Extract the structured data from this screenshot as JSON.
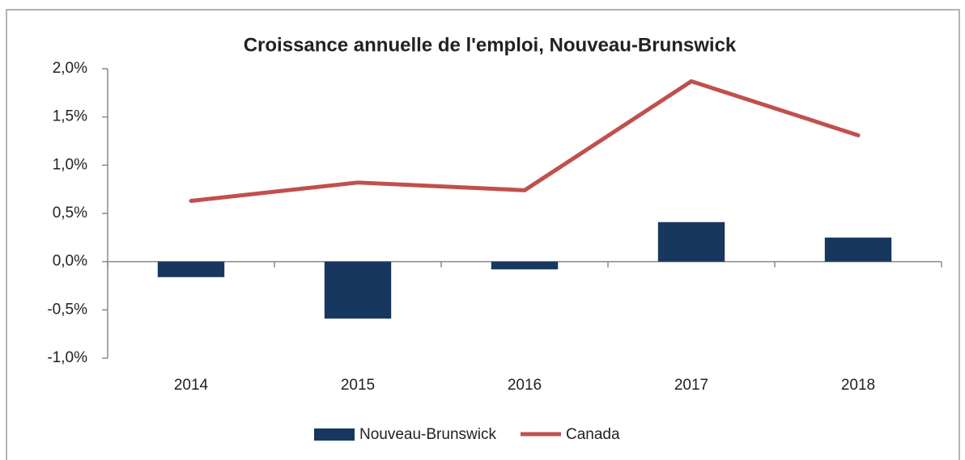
{
  "chart_data": {
    "type": "bar",
    "title": "Croissance annuelle de l'emploi, Nouveau-Brunswick",
    "categories": [
      "2014",
      "2015",
      "2016",
      "2017",
      "2018"
    ],
    "series": [
      {
        "name": "Nouveau-Brunswick",
        "type": "bar",
        "color": "#17375e",
        "values": [
          -0.16,
          -0.59,
          -0.08,
          0.41,
          0.25
        ]
      },
      {
        "name": "Canada",
        "type": "line",
        "color": "#c0504d",
        "values": [
          0.63,
          0.82,
          0.74,
          1.87,
          1.31
        ]
      }
    ],
    "ylim": [
      -1.0,
      2.0
    ],
    "yticks": [
      {
        "value": -1.0,
        "label": "-1,0%"
      },
      {
        "value": -0.5,
        "label": "-0,5%"
      },
      {
        "value": 0,
        "label": "0,0%"
      },
      {
        "value": 0.5,
        "label": "0,5%"
      },
      {
        "value": 1.0,
        "label": "1,0%"
      },
      {
        "value": 1.5,
        "label": "1,5%"
      },
      {
        "value": 2.0,
        "label": "2,0%"
      }
    ],
    "legend": "bottom"
  }
}
